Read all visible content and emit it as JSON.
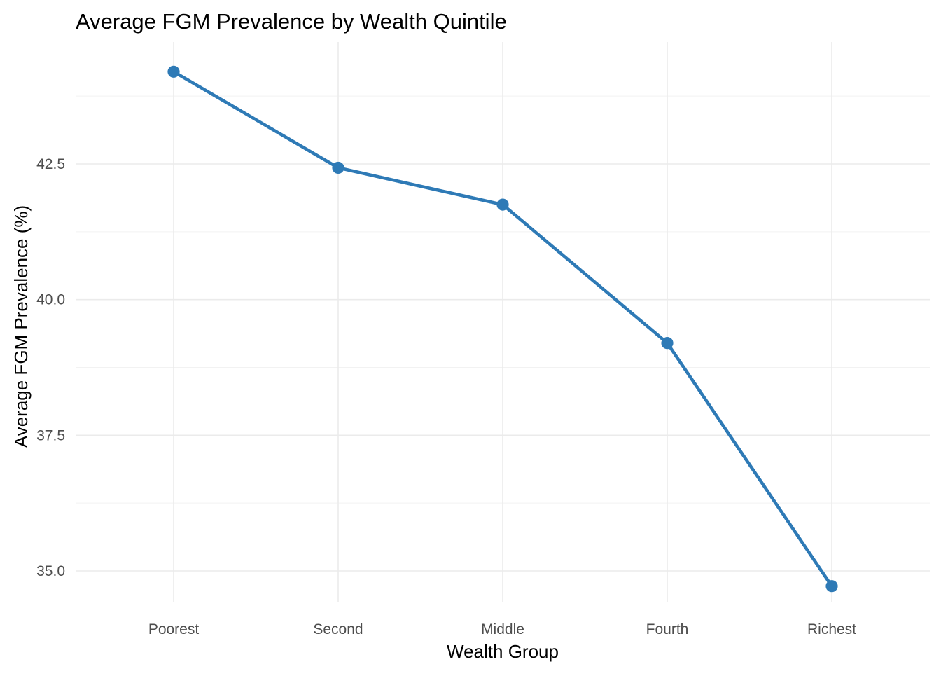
{
  "chart_data": {
    "type": "line",
    "title": "Average FGM Prevalence by Wealth Quintile",
    "xlabel": "Wealth Group",
    "ylabel": "Average FGM Prevalence (%)",
    "categories": [
      "Poorest",
      "Second",
      "Middle",
      "Fourth",
      "Richest"
    ],
    "values": [
      44.2,
      42.43,
      41.75,
      39.2,
      34.72
    ],
    "ylim": [
      34.3,
      44.9
    ],
    "yticks": [
      35.0,
      37.5,
      40.0,
      42.5
    ],
    "ytick_labels": [
      "35.0",
      "37.5",
      "40.0",
      "42.5"
    ],
    "grid": true,
    "legend": "none",
    "colors": {
      "series": "#2e7ab6"
    }
  }
}
